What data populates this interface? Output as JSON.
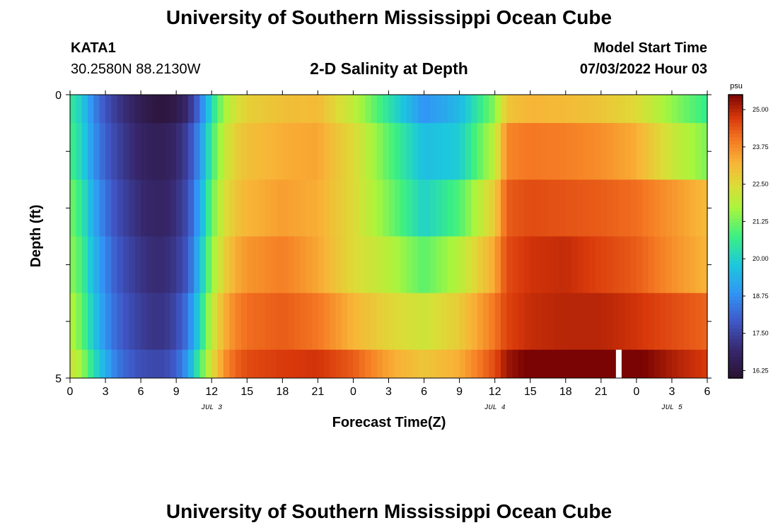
{
  "page": {
    "title": "University of Southern Mississippi Ocean Cube",
    "footer_title": "University of Southern Mississippi Ocean Cube",
    "station": "KATA1",
    "coords": "30.2580N  88.2130W",
    "subtitle": "2-D Salinity at Depth",
    "model_start_label": "Model Start Time",
    "model_start_value": "07/03/2022 Hour 03"
  },
  "chart_data": {
    "type": "heatmap",
    "title": "2-D Salinity at Depth",
    "xlabel": "Forecast Time(Z)",
    "ylabel": "Depth (ft)",
    "x_unit": "hours since 07/03/2022 00Z",
    "xlim": [
      0,
      54
    ],
    "ylim": [
      0,
      5
    ],
    "x_tick_labels": [
      "0",
      "3",
      "6",
      "9",
      "12",
      "15",
      "18",
      "21",
      "0",
      "3",
      "6",
      "9",
      "12",
      "15",
      "18",
      "21",
      "0",
      "3",
      "6"
    ],
    "x_tick_values": [
      0,
      3,
      6,
      9,
      12,
      15,
      18,
      21,
      24,
      27,
      30,
      33,
      36,
      39,
      42,
      45,
      48,
      51,
      54
    ],
    "date_labels": [
      {
        "text": "JUL 3",
        "x": 12
      },
      {
        "text": "JUL 4",
        "x": 36
      },
      {
        "text": "JUL 5",
        "x": 51
      }
    ],
    "y_tick_labels": [
      "0",
      "5"
    ],
    "y_tick_values": [
      0,
      5
    ],
    "colorbar": {
      "unit": "psu",
      "min": 16.0,
      "max": 25.5,
      "tick_labels": [
        "25.00",
        "23.75",
        "22.50",
        "21.25",
        "20.00",
        "18.75",
        "17.50",
        "16.25"
      ],
      "tick_values": [
        25.0,
        23.75,
        22.5,
        21.25,
        20.0,
        18.75,
        17.5,
        16.25
      ]
    },
    "depth_levels": [
      0,
      1,
      2,
      3,
      4,
      5
    ],
    "time_nodes": [
      0,
      1,
      2,
      3,
      4,
      5,
      6,
      7,
      8,
      9,
      10,
      11,
      12,
      13,
      14,
      15,
      18,
      21,
      24,
      27,
      30,
      33,
      36,
      37,
      39,
      42,
      45,
      48,
      51,
      54
    ],
    "values": [
      [
        20.6,
        19.9,
        18.6,
        17.8,
        17.3,
        16.9,
        16.5,
        16.3,
        16.2,
        16.4,
        17.0,
        18.3,
        20.2,
        21.6,
        22.3,
        22.7,
        23.0,
        23.1,
        22.0,
        20.4,
        18.8,
        19.5,
        21.4,
        22.9,
        23.2,
        23.1,
        22.9,
        22.5,
        21.5,
        20.6
      ],
      [
        20.8,
        20.1,
        18.8,
        18.0,
        17.5,
        17.1,
        16.8,
        16.6,
        16.6,
        16.9,
        17.5,
        18.8,
        20.7,
        22.0,
        22.7,
        23.0,
        23.3,
        23.4,
        22.5,
        21.0,
        19.6,
        19.9,
        22.0,
        23.8,
        24.0,
        23.9,
        23.7,
        23.3,
        22.2,
        21.3
      ],
      [
        21.3,
        20.5,
        19.2,
        18.3,
        17.7,
        17.3,
        17.0,
        16.8,
        16.8,
        17.1,
        17.7,
        19.2,
        21.1,
        22.3,
        22.9,
        23.2,
        23.5,
        23.3,
        22.5,
        21.3,
        20.0,
        20.9,
        22.8,
        24.3,
        24.5,
        24.4,
        24.3,
        24.1,
        23.6,
        23.1
      ],
      [
        21.5,
        20.8,
        19.5,
        18.6,
        17.9,
        17.5,
        17.2,
        17.0,
        17.0,
        17.3,
        17.9,
        19.6,
        21.5,
        22.6,
        23.3,
        23.6,
        23.9,
        23.4,
        22.5,
        21.9,
        21.0,
        21.9,
        23.4,
        24.5,
        24.8,
        24.9,
        24.6,
        24.3,
        23.7,
        23.2
      ],
      [
        21.9,
        21.1,
        19.8,
        18.8,
        18.1,
        17.7,
        17.4,
        17.2,
        17.2,
        17.6,
        18.4,
        20.1,
        22.0,
        23.2,
        23.8,
        24.1,
        24.3,
        24.0,
        23.2,
        22.6,
        22.2,
        22.8,
        24.0,
        24.6,
        24.9,
        25.0,
        25.0,
        24.8,
        24.5,
        24.2
      ],
      [
        22.3,
        21.6,
        20.3,
        19.3,
        18.4,
        18.0,
        17.7,
        17.6,
        17.6,
        18.0,
        19.0,
        20.8,
        22.4,
        23.6,
        24.2,
        24.5,
        24.7,
        24.8,
        24.3,
        23.4,
        22.9,
        23.3,
        24.5,
        25.2,
        25.6,
        25.7,
        25.9,
        25.6,
        25.1,
        24.7
      ]
    ],
    "gap_at_bottom": {
      "x": 46.5,
      "depth_row": 5
    }
  }
}
